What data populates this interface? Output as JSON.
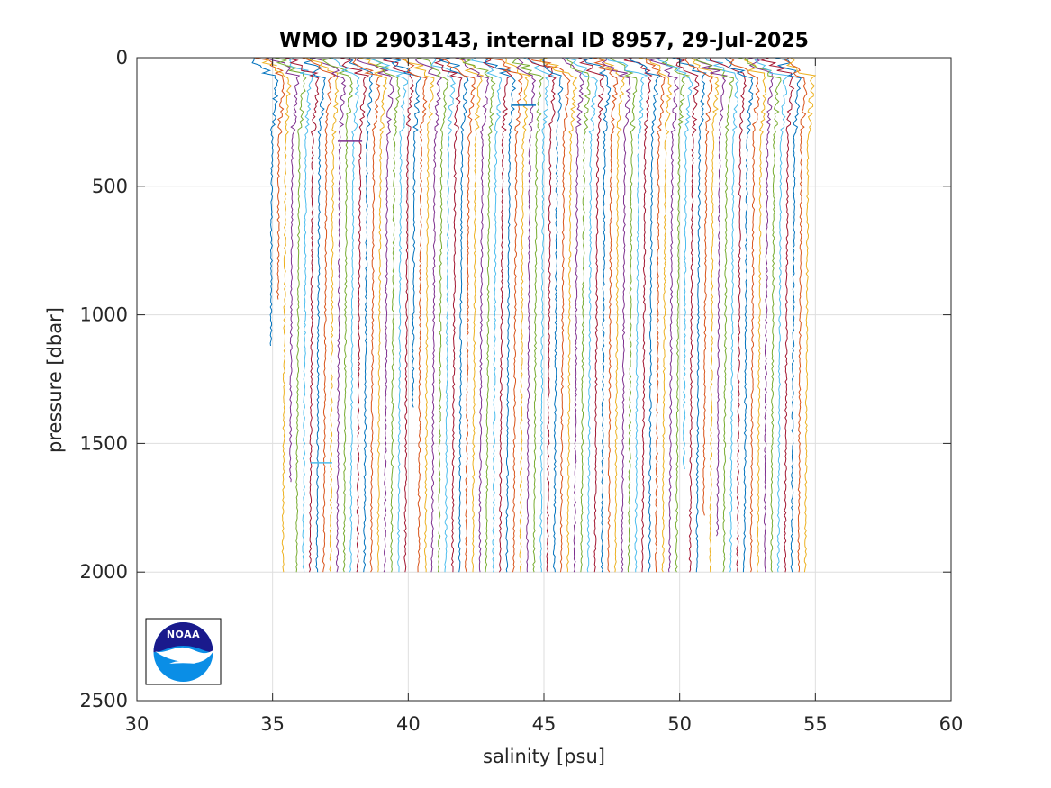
{
  "chart_data": {
    "type": "line",
    "title": "WMO ID 2903143, internal ID 8957, 29-Jul-2025",
    "xlabel": "salinity [psu]",
    "ylabel": "pressure [dbar]",
    "xlim": [
      30,
      60
    ],
    "ylim": [
      0,
      2500
    ],
    "y_reversed": true,
    "grid": true,
    "xticks": [
      30,
      35,
      40,
      45,
      50,
      55,
      60
    ],
    "yticks": [
      0,
      500,
      1000,
      1500,
      2000,
      2500
    ],
    "xtick_labels": [
      "30",
      "35",
      "40",
      "45",
      "50",
      "55",
      "60"
    ],
    "ytick_labels": [
      "0",
      "500",
      "1000",
      "1500",
      "2000",
      "2500"
    ],
    "profile_offset_note": "successive profiles offset by ~0.25 psu",
    "series": [
      {
        "first_deep_salinity": 34.95,
        "max_pressure": 1120
      },
      {
        "first_deep_salinity": 35.2,
        "max_pressure": 940
      },
      {
        "first_deep_salinity": 35.45,
        "max_pressure": 2000
      },
      {
        "first_deep_salinity": 35.7,
        "max_pressure": 1650
      },
      {
        "first_deep_salinity": 35.95,
        "max_pressure": 2000
      },
      {
        "first_deep_salinity": 36.2,
        "max_pressure": 2000
      },
      {
        "first_deep_salinity": 54.95,
        "max_pressure": 2000
      },
      {
        "first_deep_salinity": 55.15,
        "max_pressure": 2000
      }
    ],
    "profile_count": 80,
    "profile_start_salinity": 35.0,
    "profile_step_salinity": 0.25,
    "colors": [
      "#0072BD",
      "#D95319",
      "#EDB120",
      "#7E2F8E",
      "#77AC30",
      "#4DBEEE",
      "#A2142F"
    ]
  },
  "logo": {
    "name": "NOAA",
    "text": "NOAA",
    "colors": {
      "navy": "#1a1a8c",
      "blue": "#0a8ee6",
      "white": "#ffffff"
    }
  }
}
